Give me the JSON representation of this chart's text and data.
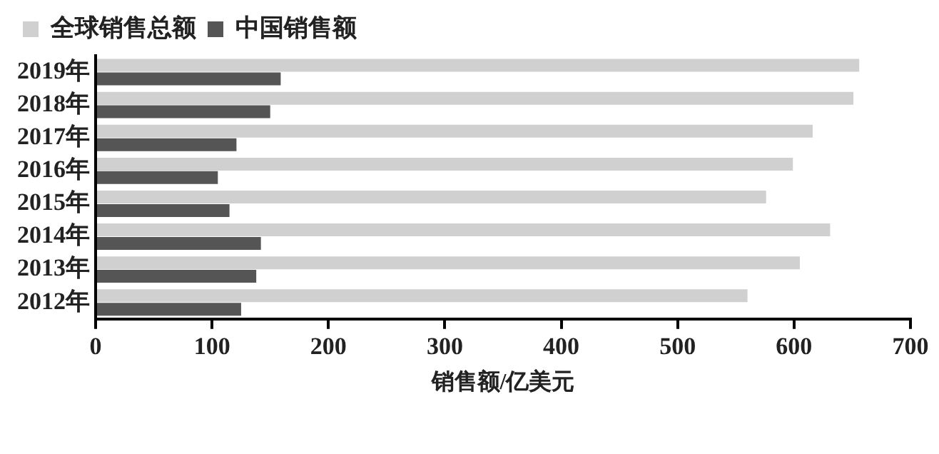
{
  "chart_data": {
    "type": "bar",
    "orientation": "horizontal",
    "xlabel": "销售额/亿美元",
    "categories": [
      "2019年",
      "2018年",
      "2017年",
      "2016年",
      "2015年",
      "2014年",
      "2013年",
      "2012年"
    ],
    "series": [
      {
        "name": "全球销售总额",
        "color": "#d0d0d0",
        "values": [
          656,
          651,
          616,
          599,
          576,
          631,
          605,
          560
        ]
      },
      {
        "name": "中国销售额",
        "color": "#555555",
        "values": [
          159,
          150,
          121,
          105,
          115,
          142,
          138,
          125
        ]
      }
    ],
    "xlim": [
      0,
      700
    ],
    "xticks": [
      0,
      100,
      200,
      300,
      400,
      500,
      600,
      700
    ],
    "grid": false,
    "legend": "top"
  }
}
